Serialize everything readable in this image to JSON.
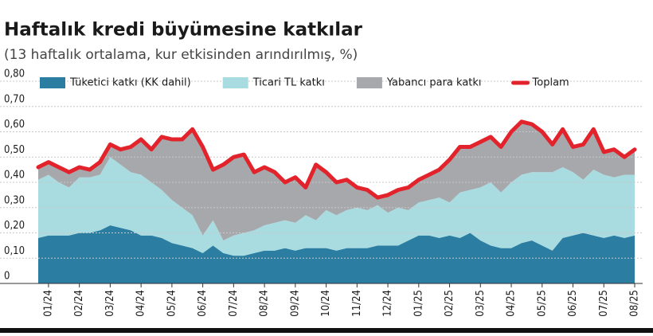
{
  "chart_data": {
    "type": "stacked_area_line",
    "title": "Haftalık kredi büyümesine katkılar",
    "subtitle": "(13 haftalık ortalama, kur etkisinden arındırılmış, %)",
    "categories": [
      null,
      "01/24",
      null,
      null,
      "02/24",
      null,
      null,
      "03/24",
      null,
      null,
      "04/24",
      null,
      null,
      "05/24",
      null,
      null,
      "06/24",
      null,
      null,
      "07/24",
      null,
      null,
      "08/24",
      null,
      null,
      "09/24",
      null,
      null,
      "10/24",
      null,
      null,
      "11/24",
      null,
      null,
      "12/24",
      null,
      null,
      "01/25",
      null,
      null,
      "02/25",
      null,
      null,
      "03/25",
      null,
      null,
      "04/25",
      null,
      null,
      "05/25",
      null,
      null,
      "06/25",
      null,
      null,
      "07/25",
      null,
      null,
      "08/25"
    ],
    "series": [
      {
        "name": "Tüketici katkı (KK dahil)",
        "color": "#2b7ea1",
        "kind": "area",
        "values": [
          0.18,
          0.19,
          0.19,
          0.19,
          0.2,
          0.2,
          0.21,
          0.23,
          0.22,
          0.21,
          0.19,
          0.19,
          0.18,
          0.16,
          0.15,
          0.14,
          0.12,
          0.15,
          0.12,
          0.11,
          0.11,
          0.12,
          0.13,
          0.13,
          0.14,
          0.13,
          0.14,
          0.14,
          0.14,
          0.13,
          0.14,
          0.14,
          0.14,
          0.15,
          0.15,
          0.15,
          0.17,
          0.19,
          0.19,
          0.18,
          0.19,
          0.18,
          0.2,
          0.17,
          0.15,
          0.14,
          0.14,
          0.16,
          0.17,
          0.15,
          0.13,
          0.18,
          0.19,
          0.2,
          0.19,
          0.18,
          0.19,
          0.18,
          0.19
        ]
      },
      {
        "name": "Ticari TL katkı",
        "color": "#a9dce1",
        "kind": "area",
        "values": [
          0.23,
          0.24,
          0.21,
          0.19,
          0.22,
          0.22,
          0.22,
          0.27,
          0.25,
          0.23,
          0.24,
          0.21,
          0.19,
          0.17,
          0.15,
          0.13,
          0.07,
          0.1,
          0.05,
          0.08,
          0.09,
          0.09,
          0.1,
          0.11,
          0.11,
          0.11,
          0.13,
          0.11,
          0.15,
          0.14,
          0.15,
          0.16,
          0.15,
          0.16,
          0.13,
          0.15,
          0.12,
          0.13,
          0.14,
          0.16,
          0.13,
          0.18,
          0.17,
          0.21,
          0.25,
          0.22,
          0.26,
          0.27,
          0.27,
          0.29,
          0.31,
          0.28,
          0.25,
          0.21,
          0.26,
          0.25,
          0.23,
          0.25,
          0.24
        ]
      },
      {
        "name": "Yabancı para katkı",
        "color": "#a7a8ab",
        "kind": "area",
        "values": [
          0.05,
          0.05,
          0.06,
          0.06,
          0.04,
          0.03,
          0.05,
          0.05,
          0.06,
          0.1,
          0.14,
          0.13,
          0.21,
          0.24,
          0.27,
          0.34,
          0.35,
          0.2,
          0.3,
          0.31,
          0.31,
          0.23,
          0.23,
          0.2,
          0.15,
          0.18,
          0.11,
          0.22,
          0.15,
          0.13,
          0.12,
          0.08,
          0.08,
          0.03,
          0.07,
          0.07,
          0.09,
          0.09,
          0.1,
          0.11,
          0.17,
          0.18,
          0.17,
          0.18,
          0.18,
          0.18,
          0.2,
          0.21,
          0.19,
          0.16,
          0.11,
          0.15,
          0.1,
          0.14,
          0.16,
          0.09,
          0.11,
          0.07,
          0.1
        ]
      },
      {
        "name": "Toplam",
        "color": "#e3232b",
        "kind": "line",
        "values": [
          0.46,
          0.48,
          0.46,
          0.44,
          0.46,
          0.45,
          0.48,
          0.55,
          0.53,
          0.54,
          0.57,
          0.53,
          0.58,
          0.57,
          0.57,
          0.61,
          0.54,
          0.45,
          0.47,
          0.5,
          0.51,
          0.44,
          0.46,
          0.44,
          0.4,
          0.42,
          0.38,
          0.47,
          0.44,
          0.4,
          0.41,
          0.38,
          0.37,
          0.34,
          0.35,
          0.37,
          0.38,
          0.41,
          0.43,
          0.45,
          0.49,
          0.54,
          0.54,
          0.56,
          0.58,
          0.54,
          0.6,
          0.64,
          0.63,
          0.6,
          0.55,
          0.61,
          0.54,
          0.55,
          0.61,
          0.52,
          0.53,
          0.5,
          0.53
        ]
      }
    ],
    "ylim": [
      0,
      0.8
    ],
    "yticks": [
      0,
      {
        "value": 0.1,
        "label": "0,10"
      },
      {
        "value": 0.2,
        "label": "0,20"
      },
      {
        "value": 0.3,
        "label": "0,30"
      },
      {
        "value": 0.4,
        "label": "0,40"
      },
      {
        "value": 0.5,
        "label": "0,50"
      },
      {
        "value": 0.6,
        "label": "0,60"
      },
      {
        "value": 0.7,
        "label": "0,70"
      },
      {
        "value": 0.8,
        "label": "0,80"
      }
    ],
    "grid": true
  }
}
